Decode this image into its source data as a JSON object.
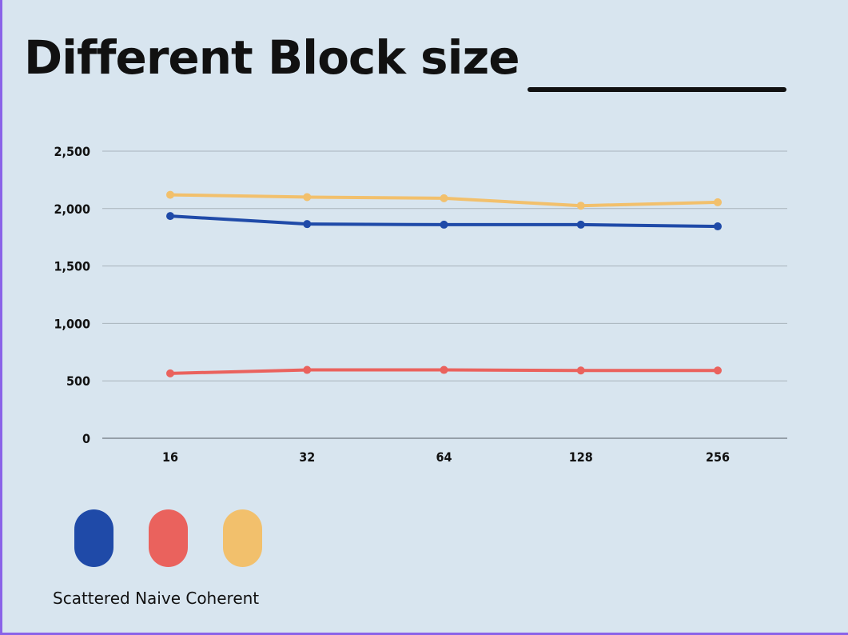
{
  "title": "Different Block size",
  "chart_data": {
    "type": "line",
    "categories": [
      "16",
      "32",
      "64",
      "128",
      "256"
    ],
    "series": [
      {
        "name": "Scattered",
        "color": "#1f4aa8",
        "values": [
          1935,
          1865,
          1860,
          1860,
          1845
        ]
      },
      {
        "name": "Naive",
        "color": "#ea625d",
        "values": [
          565,
          595,
          595,
          590,
          590
        ]
      },
      {
        "name": "Coherent",
        "color": "#f2c06c",
        "values": [
          2120,
          2100,
          2090,
          2025,
          2055
        ]
      }
    ],
    "y_ticks": [
      "2,500",
      "2,000",
      "1,500",
      "1,000",
      "500",
      "0"
    ],
    "y_tick_values": [
      2500,
      2000,
      1500,
      1000,
      500,
      0
    ],
    "ylim": [
      0,
      2500
    ],
    "grid": true,
    "legend_position": "bottom-left"
  }
}
